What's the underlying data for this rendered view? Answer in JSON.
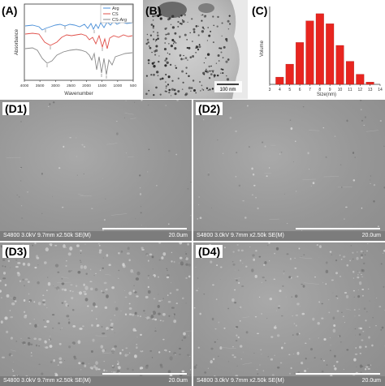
{
  "figure": {
    "panels": {
      "A": {
        "label": "(A)"
      },
      "B": {
        "label": "(B)",
        "scale_text": "100 nm"
      },
      "C": {
        "label": "(C)"
      },
      "D1": {
        "label": "(D1)"
      },
      "D2": {
        "label": "(D2)"
      },
      "D3": {
        "label": "(D3)"
      },
      "D4": {
        "label": "(D4)"
      }
    },
    "sem_info": "S4800 3.0kV 9.7mm x2.50k SE(M)",
    "sem_scale": "20.0um"
  },
  "chart_data": [
    {
      "type": "line",
      "panel": "A",
      "xlabel": "Wavenumber",
      "ylabel": "Absorbance",
      "xlim": [
        4000,
        500
      ],
      "x_ticks": [
        4000,
        3500,
        3000,
        2500,
        2000,
        1500,
        1000,
        500
      ],
      "legend": "top-right",
      "series": [
        {
          "name": "Arg",
          "color": "#4a8fd8"
        },
        {
          "name": "CS",
          "color": "#e0504a"
        },
        {
          "name": "CS-Arg",
          "color": "#8a8a8a"
        }
      ]
    },
    {
      "type": "bar",
      "panel": "C",
      "xlabel": "Size(nm)",
      "ylabel": "Volume",
      "bar_color": "#e8251f",
      "x_ticks": [
        3,
        4,
        5,
        6,
        7,
        8,
        9,
        10,
        11,
        12,
        13,
        14
      ],
      "categories": [
        4,
        5,
        6,
        7,
        8,
        9,
        10,
        11,
        12,
        13
      ],
      "values": [
        2.5,
        7,
        14.5,
        22,
        24.5,
        21,
        13.5,
        8,
        3.5,
        0.8
      ],
      "ylim": [
        0,
        27
      ]
    }
  ]
}
